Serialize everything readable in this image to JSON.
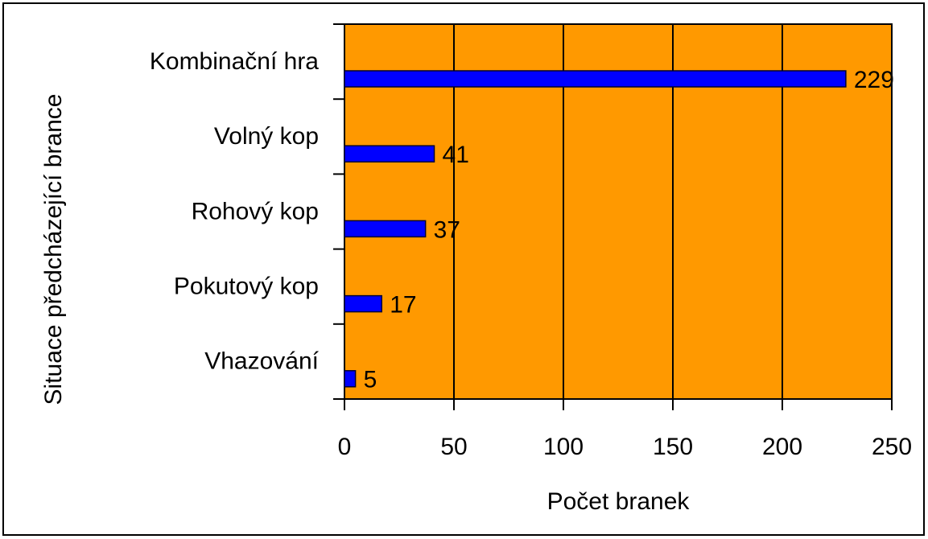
{
  "chart_data": {
    "type": "bar",
    "orientation": "horizontal",
    "categories": [
      "Kombinační hra",
      "Volný kop",
      "Rohový kop",
      "Pokutový kop",
      "Vhazování"
    ],
    "values": [
      229,
      41,
      37,
      17,
      5
    ],
    "color": "#0000ff",
    "background": "#ff9900",
    "xlabel": "Počet branek",
    "ylabel": "Situace předcházející brance",
    "xlim": [
      0,
      250
    ],
    "xticks": [
      0,
      50,
      100,
      150,
      200,
      250
    ],
    "grid": true
  }
}
